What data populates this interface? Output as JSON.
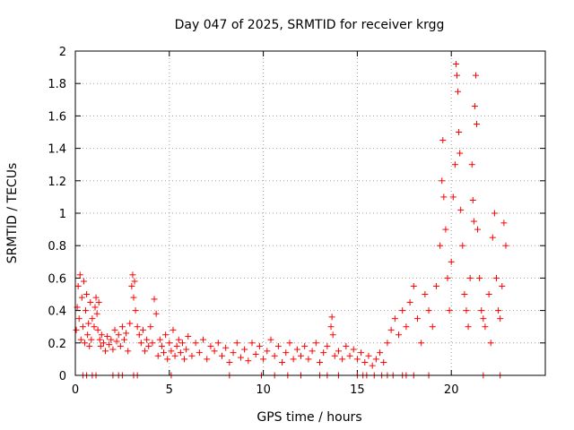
{
  "chart_data": {
    "type": "scatter",
    "title": "Day 047 of 2025, SRMTID for receiver krgg",
    "xlabel": "GPS time / hours",
    "ylabel": "SRMTID / TECUs",
    "xlim": [
      0,
      25
    ],
    "ylim": [
      0,
      2
    ],
    "xticks": [
      0,
      5,
      10,
      15,
      20
    ],
    "yticks": [
      0,
      0.2,
      0.4,
      0.6,
      0.8,
      1,
      1.2,
      1.4,
      1.6,
      1.8,
      2
    ],
    "xtick_labels": [
      "0",
      "5",
      "10",
      "15",
      "20"
    ],
    "ytick_labels": [
      "0",
      "0.2",
      "0.4",
      "0.6",
      "0.8",
      "1",
      "1.2",
      "1.4",
      "1.6",
      "1.8",
      "2"
    ],
    "grid": true,
    "marker": "+",
    "color": "#ff0000",
    "series": [
      {
        "name": "SRMTID",
        "points": [
          [
            0.05,
            0.28
          ],
          [
            0.1,
            0.42
          ],
          [
            0.15,
            0.55
          ],
          [
            0.2,
            0.35
          ],
          [
            0.25,
            0.62
          ],
          [
            0.3,
            0.22
          ],
          [
            0.35,
            0.48
          ],
          [
            0.4,
            0.3
          ],
          [
            0.45,
            0.58
          ],
          [
            0.5,
            0.2
          ],
          [
            0.55,
            0.4
          ],
          [
            0.6,
            0.5
          ],
          [
            0.65,
            0.25
          ],
          [
            0.7,
            0.32
          ],
          [
            0.75,
            0.18
          ],
          [
            0.8,
            0.45
          ],
          [
            0.85,
            0.22
          ],
          [
            0.9,
            0.35
          ],
          [
            1.0,
            0.3
          ],
          [
            1.05,
            0.42
          ],
          [
            1.1,
            0.48
          ],
          [
            1.15,
            0.38
          ],
          [
            1.2,
            0.28
          ],
          [
            1.25,
            0.45
          ],
          [
            1.3,
            0.22
          ],
          [
            1.35,
            0.18
          ],
          [
            1.4,
            0.25
          ],
          [
            1.5,
            0.2
          ],
          [
            1.6,
            0.15
          ],
          [
            1.7,
            0.24
          ],
          [
            1.8,
            0.19
          ],
          [
            1.9,
            0.22
          ],
          [
            2.0,
            0.16
          ],
          [
            2.1,
            0.28
          ],
          [
            2.2,
            0.21
          ],
          [
            2.3,
            0.25
          ],
          [
            2.4,
            0.18
          ],
          [
            2.5,
            0.3
          ],
          [
            2.6,
            0.22
          ],
          [
            2.7,
            0.26
          ],
          [
            2.8,
            0.15
          ],
          [
            2.9,
            0.32
          ],
          [
            3.0,
            0.55
          ],
          [
            3.05,
            0.62
          ],
          [
            3.1,
            0.48
          ],
          [
            3.15,
            0.58
          ],
          [
            3.2,
            0.4
          ],
          [
            3.3,
            0.3
          ],
          [
            3.4,
            0.25
          ],
          [
            3.5,
            0.2
          ],
          [
            3.6,
            0.28
          ],
          [
            3.7,
            0.15
          ],
          [
            3.8,
            0.22
          ],
          [
            3.9,
            0.18
          ],
          [
            4.0,
            0.3
          ],
          [
            4.1,
            0.2
          ],
          [
            4.2,
            0.47
          ],
          [
            4.3,
            0.38
          ],
          [
            4.4,
            0.12
          ],
          [
            4.5,
            0.22
          ],
          [
            4.6,
            0.18
          ],
          [
            4.7,
            0.14
          ],
          [
            4.8,
            0.25
          ],
          [
            4.9,
            0.1
          ],
          [
            5.0,
            0.2
          ],
          [
            5.1,
            0.15
          ],
          [
            5.2,
            0.28
          ],
          [
            5.3,
            0.12
          ],
          [
            5.4,
            0.18
          ],
          [
            5.5,
            0.22
          ],
          [
            5.6,
            0.14
          ],
          [
            5.7,
            0.2
          ],
          [
            5.8,
            0.1
          ],
          [
            5.9,
            0.16
          ],
          [
            6.0,
            0.24
          ],
          [
            6.2,
            0.12
          ],
          [
            6.4,
            0.2
          ],
          [
            6.6,
            0.14
          ],
          [
            6.8,
            0.22
          ],
          [
            7.0,
            0.1
          ],
          [
            7.2,
            0.18
          ],
          [
            7.4,
            0.15
          ],
          [
            7.6,
            0.2
          ],
          [
            7.8,
            0.12
          ],
          [
            8.0,
            0.17
          ],
          [
            8.2,
            0.08
          ],
          [
            8.4,
            0.14
          ],
          [
            8.6,
            0.2
          ],
          [
            8.8,
            0.11
          ],
          [
            9.0,
            0.16
          ],
          [
            9.2,
            0.09
          ],
          [
            9.4,
            0.2
          ],
          [
            9.6,
            0.13
          ],
          [
            9.8,
            0.18
          ],
          [
            10.0,
            0.1
          ],
          [
            10.2,
            0.15
          ],
          [
            10.4,
            0.22
          ],
          [
            10.6,
            0.12
          ],
          [
            10.8,
            0.18
          ],
          [
            11.0,
            0.08
          ],
          [
            11.2,
            0.14
          ],
          [
            11.4,
            0.2
          ],
          [
            11.6,
            0.1
          ],
          [
            11.8,
            0.16
          ],
          [
            12.0,
            0.12
          ],
          [
            12.2,
            0.18
          ],
          [
            12.4,
            0.1
          ],
          [
            12.6,
            0.15
          ],
          [
            12.8,
            0.2
          ],
          [
            13.0,
            0.08
          ],
          [
            13.2,
            0.14
          ],
          [
            13.4,
            0.18
          ],
          [
            13.6,
            0.3
          ],
          [
            13.65,
            0.36
          ],
          [
            13.7,
            0.25
          ],
          [
            13.8,
            0.12
          ],
          [
            14.0,
            0.15
          ],
          [
            14.2,
            0.1
          ],
          [
            14.4,
            0.18
          ],
          [
            14.6,
            0.12
          ],
          [
            14.8,
            0.16
          ],
          [
            15.0,
            0.1
          ],
          [
            15.2,
            0.14
          ],
          [
            15.4,
            0.08
          ],
          [
            15.6,
            0.12
          ],
          [
            15.8,
            0.06
          ],
          [
            16.0,
            0.1
          ],
          [
            16.2,
            0.14
          ],
          [
            16.4,
            0.08
          ],
          [
            16.6,
            0.2
          ],
          [
            16.8,
            0.28
          ],
          [
            17.0,
            0.35
          ],
          [
            17.2,
            0.25
          ],
          [
            17.4,
            0.4
          ],
          [
            17.6,
            0.3
          ],
          [
            17.8,
            0.45
          ],
          [
            18.0,
            0.55
          ],
          [
            18.2,
            0.35
          ],
          [
            18.4,
            0.2
          ],
          [
            18.6,
            0.5
          ],
          [
            18.8,
            0.4
          ],
          [
            19.0,
            0.3
          ],
          [
            19.2,
            0.55
          ],
          [
            19.4,
            0.8
          ],
          [
            19.5,
            1.2
          ],
          [
            19.55,
            1.45
          ],
          [
            19.6,
            1.1
          ],
          [
            19.7,
            0.9
          ],
          [
            19.8,
            0.6
          ],
          [
            19.9,
            0.4
          ],
          [
            20.0,
            0.7
          ],
          [
            20.1,
            1.1
          ],
          [
            20.2,
            1.3
          ],
          [
            20.25,
            1.92
          ],
          [
            20.3,
            1.85
          ],
          [
            20.35,
            1.75
          ],
          [
            20.4,
            1.5
          ],
          [
            20.45,
            1.37
          ],
          [
            20.5,
            1.02
          ],
          [
            20.6,
            0.8
          ],
          [
            20.7,
            0.5
          ],
          [
            20.8,
            0.4
          ],
          [
            20.9,
            0.3
          ],
          [
            21.0,
            0.6
          ],
          [
            21.1,
            1.3
          ],
          [
            21.15,
            1.08
          ],
          [
            21.2,
            0.95
          ],
          [
            21.25,
            1.66
          ],
          [
            21.3,
            1.85
          ],
          [
            21.35,
            1.55
          ],
          [
            21.4,
            0.9
          ],
          [
            21.5,
            0.6
          ],
          [
            21.6,
            0.4
          ],
          [
            21.7,
            0.35
          ],
          [
            21.8,
            0.3
          ],
          [
            22.0,
            0.5
          ],
          [
            22.1,
            0.2
          ],
          [
            22.2,
            0.85
          ],
          [
            22.3,
            1.0
          ],
          [
            22.4,
            0.6
          ],
          [
            22.5,
            0.4
          ],
          [
            22.6,
            0.35
          ],
          [
            22.7,
            0.55
          ],
          [
            22.8,
            0.94
          ],
          [
            22.9,
            0.8
          ]
        ],
        "zero_points": [
          0.4,
          0.6,
          0.9,
          1.1,
          2.0,
          2.3,
          2.5,
          3.1,
          3.3,
          5.1,
          8.2,
          9.9,
          10.6,
          11.3,
          12.0,
          13.0,
          13.4,
          14.0,
          15.0,
          15.3,
          15.5,
          15.9,
          16.3,
          16.6,
          16.9,
          17.4,
          17.6,
          18.0,
          18.8,
          21.7,
          22.6
        ]
      }
    ]
  }
}
